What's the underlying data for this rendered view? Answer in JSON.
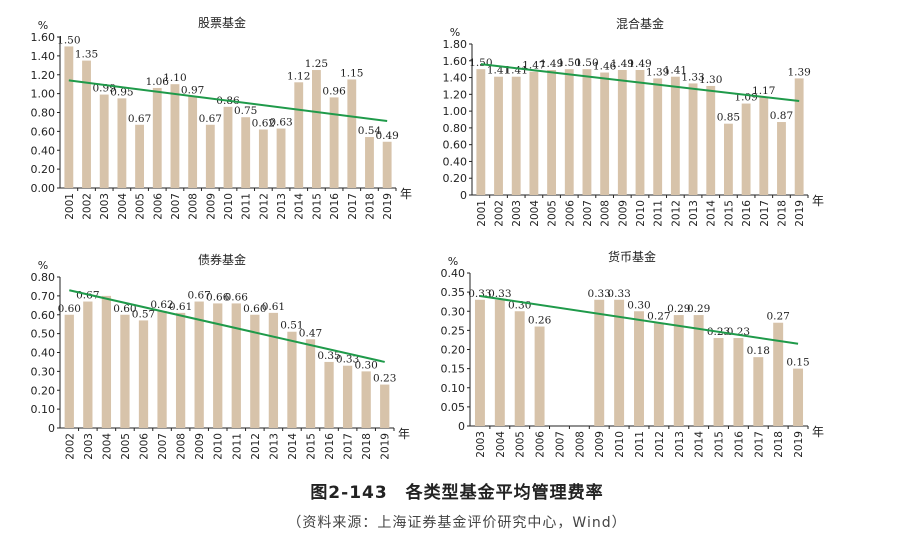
{
  "figure": {
    "title": "图2-143　各类型基金平均管理费率",
    "source": "（资料来源：上海证券基金评价研究中心，Wind）"
  },
  "colors": {
    "bar": "#d7c3aa",
    "trend": "#1f9a4a",
    "axis": "#222222",
    "text": "#222222"
  },
  "chart_data": [
    {
      "type": "bar",
      "title": "股票基金",
      "unit_label": "%",
      "x_unit": "年",
      "categories": [
        "2001",
        "2002",
        "2003",
        "2004",
        "2005",
        "2006",
        "2007",
        "2008",
        "2009",
        "2010",
        "2011",
        "2012",
        "2013",
        "2014",
        "2015",
        "2016",
        "2017",
        "2018",
        "2019"
      ],
      "values": [
        1.5,
        1.35,
        0.99,
        0.95,
        0.67,
        1.06,
        1.1,
        0.97,
        0.67,
        0.86,
        0.75,
        0.62,
        0.63,
        1.12,
        1.25,
        0.96,
        1.15,
        0.54,
        0.49
      ],
      "labels": [
        "1.50",
        "1.35",
        "0.99",
        "0.95",
        "0.67",
        "1.06",
        "1.10",
        "0.97",
        "0.67",
        "0.86",
        "0.75",
        "0.62",
        "0.63",
        "1.12",
        "1.25",
        "0.96",
        "1.15",
        "0.54",
        "0.49"
      ],
      "yticks": [
        "0.00",
        "0.20",
        "0.40",
        "0.60",
        "0.80",
        "1.00",
        "1.20",
        "1.40",
        "1.60"
      ],
      "ylim": [
        0,
        1.6
      ],
      "trend": {
        "start": 1.14,
        "end": 0.71
      }
    },
    {
      "type": "bar",
      "title": "混合基金",
      "unit_label": "%",
      "x_unit": "年",
      "categories": [
        "2001",
        "2002",
        "2003",
        "2004",
        "2005",
        "2006",
        "2007",
        "2008",
        "2009",
        "2010",
        "2011",
        "2012",
        "2013",
        "2014",
        "2015",
        "2016",
        "2017",
        "2018",
        "2019"
      ],
      "values": [
        1.5,
        1.41,
        1.41,
        1.47,
        1.49,
        1.5,
        1.5,
        1.46,
        1.49,
        1.49,
        1.39,
        1.41,
        1.33,
        1.3,
        0.85,
        1.09,
        1.17,
        0.87,
        1.39
      ],
      "labels": [
        "1.50",
        "1.41",
        "1.41",
        "1.47",
        "1.49",
        "1.50",
        "1.50",
        "1.46",
        "1.49",
        "1.49",
        "1.39",
        "1.41",
        "1.33",
        "1.30",
        "0.85",
        "1.09",
        "1.17",
        "0.87",
        "1.39"
      ],
      "yticks": [
        "0",
        "0.20",
        "0.40",
        "0.60",
        "0.80",
        "1.00",
        "1.20",
        "1.40",
        "1.60",
        "1.80"
      ],
      "ylim": [
        0,
        1.8
      ],
      "trend": {
        "start": 1.56,
        "end": 1.12
      }
    },
    {
      "type": "bar",
      "title": "债券基金",
      "unit_label": "%",
      "x_unit": "年",
      "categories": [
        "2002",
        "2003",
        "2004",
        "2005",
        "2006",
        "2007",
        "2008",
        "2009",
        "2010",
        "2011",
        "2012",
        "2013",
        "2014",
        "2015",
        "2016",
        "2017",
        "2018",
        "2019"
      ],
      "values": [
        0.6,
        0.67,
        0.7,
        0.6,
        0.57,
        0.62,
        0.61,
        0.67,
        0.66,
        0.66,
        0.6,
        0.61,
        0.51,
        0.47,
        0.35,
        0.33,
        0.3,
        0.23
      ],
      "labels": [
        "0.60",
        "0.67",
        "",
        "0.60",
        "0.57",
        "0.62",
        "0.61",
        "0.67",
        "0.66",
        "0.66",
        "0.60",
        "0.61",
        "0.51",
        "0.47",
        "0.35",
        "0.33",
        "0.30",
        "0.23"
      ],
      "yticks": [
        "0",
        "0.10",
        "0.20",
        "0.30",
        "0.40",
        "0.50",
        "0.60",
        "0.70",
        "0.80"
      ],
      "ylim": [
        0,
        0.8
      ],
      "trend": {
        "start": 0.73,
        "end": 0.35
      }
    },
    {
      "type": "bar",
      "title": "货币基金",
      "unit_label": "%",
      "x_unit": "年",
      "categories": [
        "2003",
        "2004",
        "2005",
        "2006",
        "2007",
        "2008",
        "2009",
        "2010",
        "2011",
        "2012",
        "2013",
        "2014",
        "2015",
        "2016",
        "2017",
        "2018",
        "2019"
      ],
      "values": [
        0.33,
        0.33,
        0.3,
        0.26,
        null,
        null,
        0.33,
        0.33,
        0.3,
        0.27,
        0.29,
        0.29,
        0.23,
        0.23,
        0.18,
        0.27,
        0.15
      ],
      "labels": [
        "0.33",
        "0.33",
        "0.30",
        "0.26",
        "",
        "",
        "0.33",
        "0.33",
        "0.30",
        "0.27",
        "0.29",
        "0.29",
        "0.23",
        "0.23",
        "0.18",
        "0.27",
        "0.15"
      ],
      "yticks": [
        "0",
        "0.05",
        "0.10",
        "0.15",
        "0.20",
        "0.25",
        "0.30",
        "0.35",
        "0.40"
      ],
      "ylim": [
        0,
        0.4
      ],
      "trend": {
        "start": 0.34,
        "end": 0.215
      }
    }
  ]
}
